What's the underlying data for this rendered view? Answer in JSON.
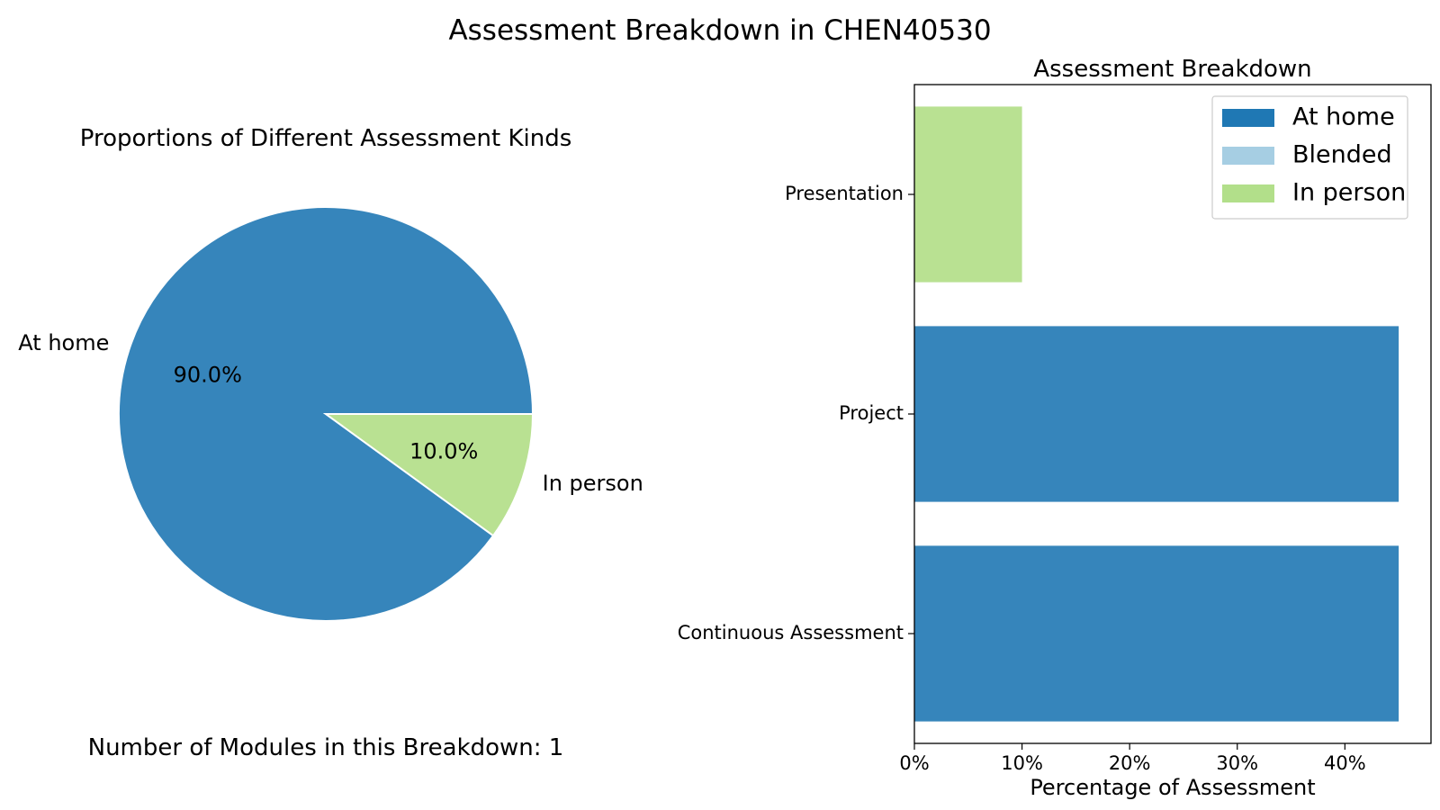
{
  "suptitle": "Assessment Breakdown in CHEN40530",
  "colors": {
    "at_home": "#3685bb",
    "blended": "#a6cee3",
    "in_person": "#b9e192",
    "legend_at_home": "#1f78b4"
  },
  "chart_data": [
    {
      "type": "pie",
      "title": "Proportions of Different Assessment Kinds",
      "labels": [
        "At home",
        "In person"
      ],
      "values": [
        90.0,
        10.0
      ],
      "pct_labels": [
        "90.0%",
        "10.0%"
      ],
      "colors": [
        "#3685bb",
        "#b9e192"
      ],
      "footer": "Number of Modules in this Breakdown: 1"
    },
    {
      "type": "bar",
      "orientation": "horizontal",
      "stacked": true,
      "title": "Assessment Breakdown",
      "xlabel": "Percentage of Assessment",
      "ylabel": "",
      "categories": [
        "Continuous Assessment",
        "Project",
        "Presentation"
      ],
      "xlim": [
        0,
        48
      ],
      "xticks": [
        0,
        10,
        20,
        30,
        40
      ],
      "xtick_labels": [
        "0%",
        "10%",
        "20%",
        "30%",
        "40%"
      ],
      "series": [
        {
          "name": "At home",
          "values": [
            45,
            45,
            0
          ],
          "color": "#3685bb"
        },
        {
          "name": "Blended",
          "values": [
            0,
            0,
            0
          ],
          "color": "#a6cee3"
        },
        {
          "name": "In person",
          "values": [
            0,
            0,
            10
          ],
          "color": "#b9e192"
        }
      ],
      "legend": {
        "placement": "top-right",
        "entries": [
          {
            "label": "At home",
            "color": "#1f78b4"
          },
          {
            "label": "Blended",
            "color": "#a6cee3"
          },
          {
            "label": "In person",
            "color": "#b2df8a"
          }
        ]
      },
      "grid": false
    }
  ]
}
